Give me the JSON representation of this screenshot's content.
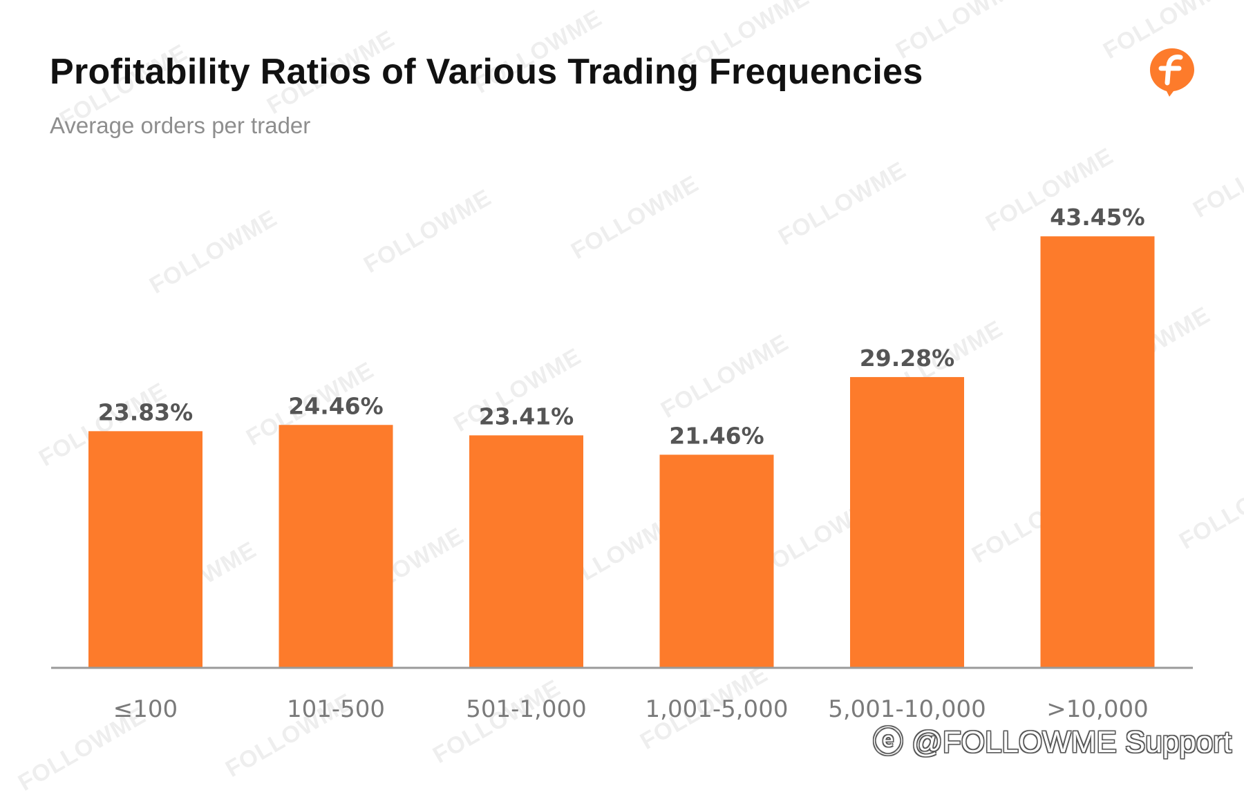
{
  "header": {
    "title": "Profitability Ratios of Various Trading Frequencies",
    "subtitle": "Average orders per trader",
    "logo_icon": "followme-logo-icon"
  },
  "watermark_text": "FOLLOWME",
  "footer": {
    "credit": "@FOLLOWME Support",
    "credit_icon": "weibo-icon"
  },
  "colors": {
    "bar": "#FD7B2B",
    "axis": "#9a9a9a",
    "title": "#111111",
    "subtitle": "#8e8e8e",
    "data_label": "#555555",
    "tick": "#7a7a7a"
  },
  "chart_data": {
    "type": "bar",
    "title": "Profitability Ratios of Various Trading Frequencies",
    "subtitle": "Average orders per trader",
    "categories": [
      "≤100",
      "101-500",
      "501-1,000",
      "1,001-5,000",
      "5,001-10,000",
      ">10,000"
    ],
    "values": [
      23.83,
      24.46,
      23.41,
      21.46,
      29.28,
      43.45
    ],
    "value_labels": [
      "23.83%",
      "24.46%",
      "23.41%",
      "21.46%",
      "29.28%",
      "43.45%"
    ],
    "unit": "%",
    "xlabel": "",
    "ylabel": "",
    "ylim": [
      0,
      45
    ],
    "grid": false,
    "legend": "none"
  }
}
